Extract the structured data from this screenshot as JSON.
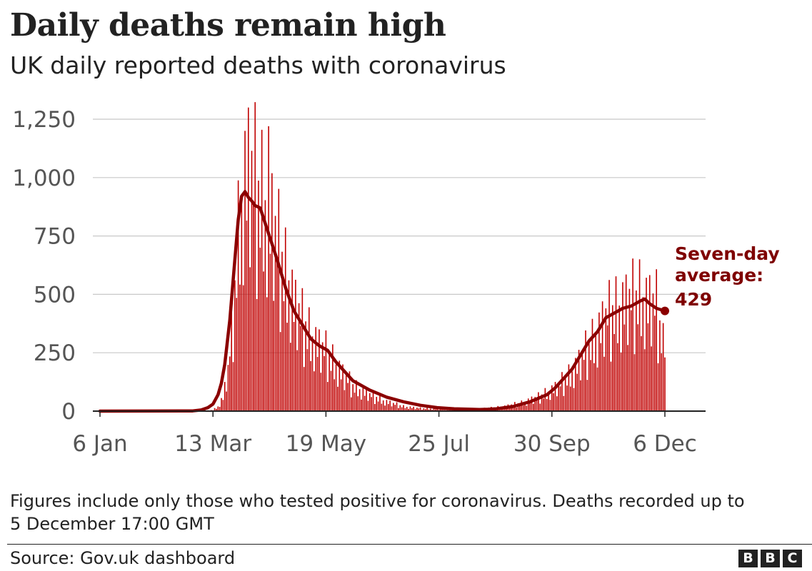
{
  "header": {
    "title": "Daily deaths remain high",
    "subtitle": "UK daily reported deaths with coronavirus"
  },
  "chart_data": {
    "type": "bar",
    "combined_with": "line",
    "y_ticks": [
      "0",
      "250",
      "500",
      "750",
      "1,000",
      "1,250"
    ],
    "y_tick_values": [
      0,
      250,
      500,
      750,
      1000,
      1250
    ],
    "ylim": [
      0,
      1250
    ],
    "x_ticks": [
      "6 Jan",
      "13 Mar",
      "19 May",
      "25 Jul",
      "30 Sep",
      "6 Dec"
    ],
    "x_tick_day_index": [
      0,
      67,
      134,
      201,
      268,
      335
    ],
    "xlim_day_index": [
      0,
      335
    ],
    "grid": true,
    "bar_color": "#c00000",
    "line_color": "#8b0000",
    "bar_anchor_days": [
      0,
      55,
      63,
      67,
      70,
      73,
      76,
      79,
      82,
      85,
      88,
      91,
      94,
      97,
      100,
      104,
      108,
      112,
      116,
      120,
      125,
      130,
      135,
      140,
      145,
      150,
      160,
      170,
      180,
      190,
      200,
      210,
      220,
      230,
      240,
      250,
      260,
      265,
      270,
      275,
      280,
      285,
      290,
      295,
      300,
      305,
      310,
      315,
      320,
      325,
      330,
      335
    ],
    "bar_anchor_values": [
      0,
      0,
      2,
      5,
      20,
      60,
      180,
      420,
      760,
      980,
      1040,
      1000,
      940,
      920,
      870,
      760,
      650,
      560,
      450,
      390,
      330,
      280,
      250,
      200,
      150,
      110,
      70,
      40,
      20,
      12,
      10,
      10,
      10,
      12,
      20,
      35,
      60,
      80,
      100,
      130,
      170,
      220,
      280,
      340,
      400,
      440,
      460,
      480,
      500,
      470,
      450,
      250
    ],
    "bar_pattern": [
      1.0,
      0.55,
      1.2,
      0.8,
      1.25,
      0.6,
      1.1,
      0.9,
      1.35,
      0.5,
      1.05,
      0.75,
      1.3,
      0.65
    ],
    "average_days": [
      0,
      55,
      60,
      64,
      67,
      70,
      72,
      74,
      77,
      80,
      82,
      84,
      86,
      88,
      90,
      92,
      95,
      100,
      105,
      110,
      115,
      120,
      125,
      130,
      135,
      140,
      145,
      150,
      160,
      170,
      180,
      190,
      200,
      210,
      220,
      225,
      230,
      235,
      240,
      245,
      250,
      255,
      260,
      265,
      270,
      275,
      280,
      285,
      290,
      295,
      300,
      305,
      310,
      315,
      320,
      323,
      326,
      330,
      335
    ],
    "average_values": [
      0,
      1,
      5,
      15,
      30,
      70,
      120,
      200,
      390,
      650,
      820,
      920,
      940,
      915,
      900,
      880,
      870,
      760,
      650,
      530,
      430,
      370,
      310,
      280,
      260,
      210,
      170,
      130,
      90,
      60,
      40,
      25,
      15,
      10,
      8,
      7,
      8,
      10,
      15,
      20,
      30,
      40,
      55,
      70,
      100,
      140,
      180,
      240,
      300,
      340,
      400,
      420,
      440,
      450,
      470,
      480,
      460,
      440,
      429
    ],
    "annotation": {
      "line1": "Seven-day",
      "line2": "average:",
      "line3": "429"
    }
  },
  "footer": {
    "note_line1": "Figures include only those who tested positive for coronavirus. Deaths recorded up to",
    "note_line2": "5 December 17:00 GMT",
    "source": "Source: Gov.uk dashboard",
    "logo_letters": [
      "B",
      "B",
      "C"
    ]
  }
}
